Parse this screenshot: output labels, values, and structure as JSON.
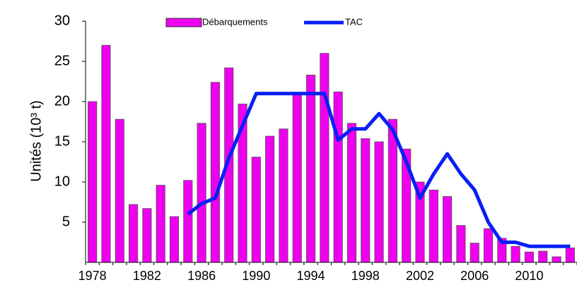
{
  "chart_data": {
    "type": "bar",
    "y_label": "Unités (10³ t)",
    "categories": [
      "1978",
      null,
      null,
      null,
      "1982",
      null,
      null,
      null,
      "1986",
      null,
      null,
      null,
      "1990",
      null,
      null,
      null,
      "1994",
      null,
      null,
      null,
      "1998",
      null,
      null,
      null,
      "2002",
      null,
      null,
      null,
      "2006",
      null,
      null,
      null,
      "2010",
      null,
      null,
      null
    ],
    "series": [
      {
        "name": "Débarquements",
        "color": "#ee00ee",
        "values": [
          20.0,
          27.0,
          17.8,
          7.2,
          6.7,
          9.6,
          5.7,
          10.2,
          17.3,
          22.4,
          24.2,
          19.7,
          13.1,
          15.7,
          16.6,
          20.9,
          23.3,
          26.0,
          21.2,
          17.3,
          15.4,
          15.0,
          17.8,
          14.1,
          10.0,
          9.0,
          8.2,
          4.6,
          2.4,
          4.2,
          3.0,
          2.0,
          1.3,
          1.4,
          0.7,
          1.8
        ]
      },
      {
        "name": "TAC",
        "type": "line",
        "color": "#0a1ff5",
        "values": [
          null,
          null,
          null,
          null,
          null,
          null,
          null,
          6.0,
          7.3,
          8.0,
          13.0,
          17.0,
          21.0,
          21.0,
          21.0,
          21.0,
          21.0,
          21.0,
          15.2,
          16.6,
          16.6,
          18.5,
          16.5,
          12.5,
          8.0,
          11.0,
          13.5,
          11.0,
          9.0,
          5.0,
          2.5,
          2.5,
          2.0,
          2.0,
          2.0,
          2.0
        ]
      }
    ],
    "ylim": [
      0,
      30
    ],
    "yticks": [
      5,
      10,
      15,
      20,
      25,
      30
    ]
  }
}
